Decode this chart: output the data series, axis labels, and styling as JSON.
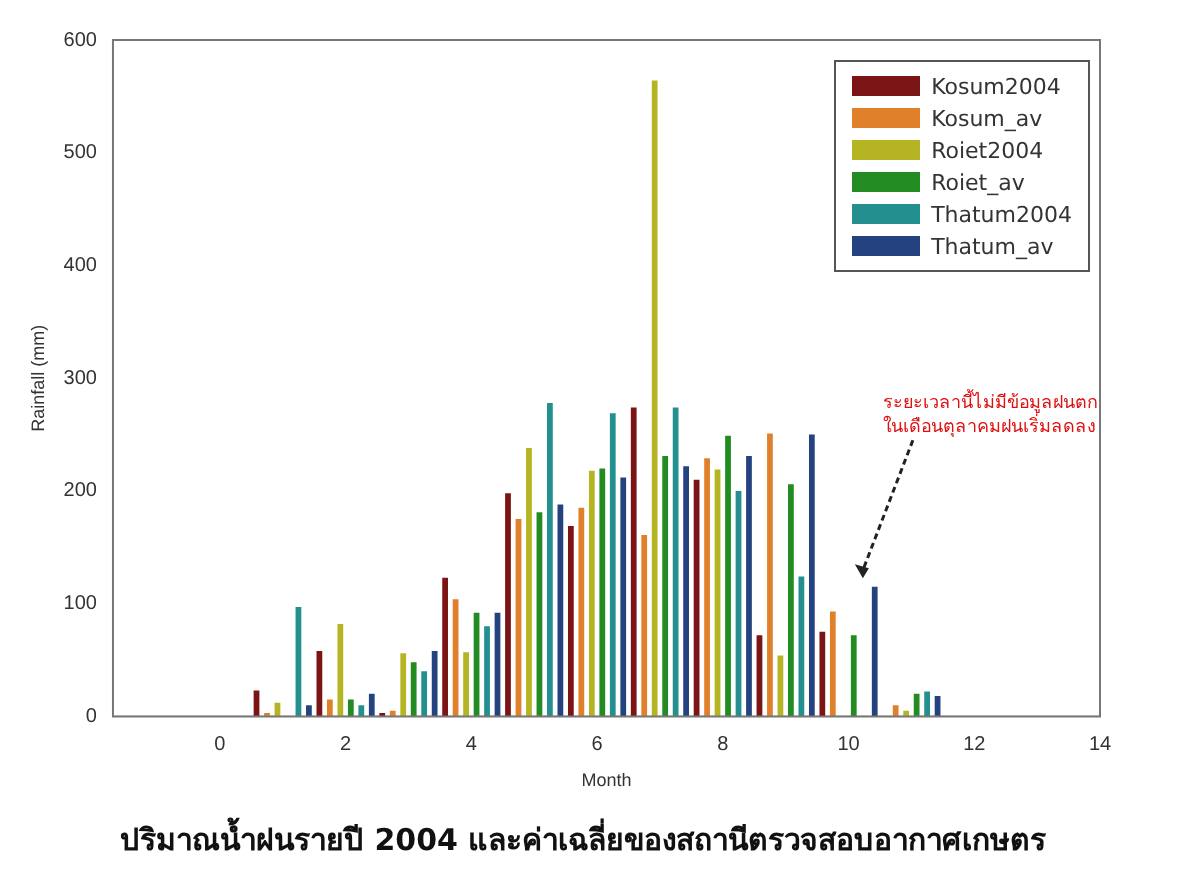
{
  "chart_data": {
    "type": "bar",
    "xlabel": "Month",
    "ylabel": "Rainfall (mm)",
    "x": [
      1,
      2,
      3,
      4,
      5,
      6,
      7,
      8,
      9,
      10,
      11,
      12
    ],
    "series": [
      {
        "name": "Kosum2004",
        "color": "#7b1414",
        "values": [
          23,
          58,
          3,
          123,
          198,
          169,
          274,
          210,
          72,
          75,
          null,
          0
        ]
      },
      {
        "name": "Kosum_av",
        "color": "#e0802a",
        "values": [
          3,
          15,
          5,
          104,
          175,
          185,
          161,
          229,
          251,
          93,
          10,
          null
        ]
      },
      {
        "name": "Roiet2004",
        "color": "#b5b523",
        "values": [
          12,
          82,
          56,
          57,
          238,
          218,
          564,
          219,
          54,
          0,
          5,
          0
        ]
      },
      {
        "name": "Roiet_av",
        "color": "#228b22",
        "values": [
          null,
          15,
          48,
          92,
          181,
          220,
          231,
          249,
          206,
          72,
          20,
          0
        ]
      },
      {
        "name": "Thatum2004",
        "color": "#238f8f",
        "values": [
          97,
          10,
          40,
          80,
          278,
          269,
          274,
          200,
          124,
          0,
          22,
          0
        ]
      },
      {
        "name": "Thatum_av",
        "color": "#24427f",
        "values": [
          10,
          20,
          58,
          92,
          188,
          212,
          222,
          231,
          250,
          115,
          18,
          null
        ]
      }
    ],
    "xlim": [
      -1.7,
      14
    ],
    "xticks": [
      0,
      2,
      4,
      6,
      8,
      10,
      12,
      14
    ],
    "ylim": [
      0,
      600
    ],
    "yticks": [
      0,
      100,
      200,
      300,
      400,
      500,
      600
    ],
    "grid": false,
    "legend": "top right",
    "annotations": [
      "ระยะเวลานี้ไม่มีข้อมูลฝนตก ในเดือนตุลาคมฝนเริ่มลดลง",
      "ปริมาณน้ำฝนรายปี 2004 และค่าเฉลี่ยของสถานีตรวจสอบอากาศเกษตร"
    ]
  }
}
